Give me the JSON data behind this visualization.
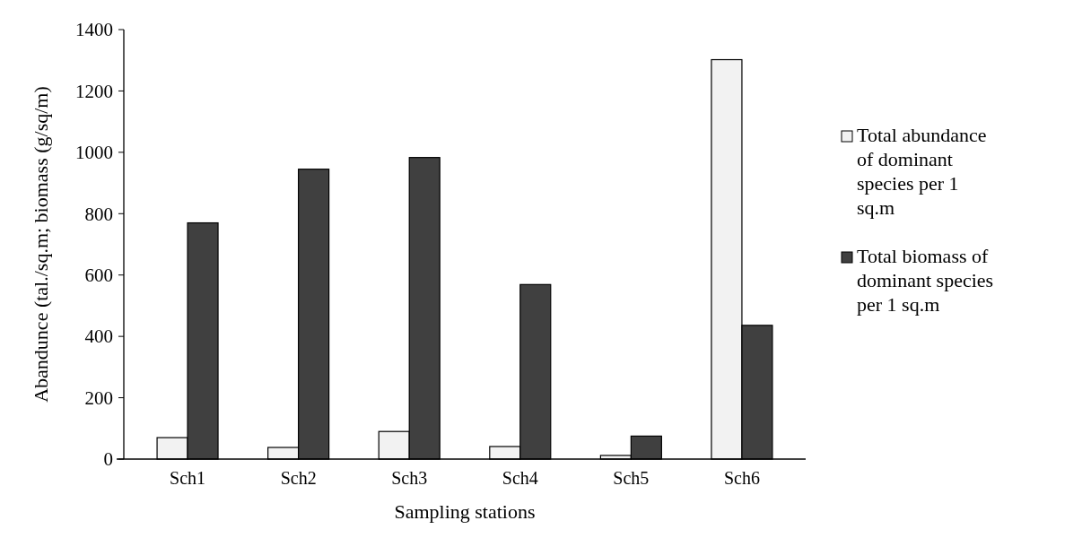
{
  "chart_data": {
    "type": "bar",
    "xlabel": "Sampling stations",
    "ylabel": "Abandunce (tal./sq.m; biomass (g/sq/m)",
    "categories": [
      "Sch1",
      "Sch2",
      "Sch3",
      "Sch4",
      "Sch5",
      "Sch6"
    ],
    "series": [
      {
        "name": "Total abundance of dominant species per 1 sq.m",
        "color": "#f2f2f2",
        "values": [
          70,
          38,
          90,
          41,
          12,
          1302
        ]
      },
      {
        "name": "Total biomass of dominant species per 1 sq.m",
        "color": "#404040",
        "values": [
          770,
          945,
          983,
          569,
          75,
          436
        ]
      }
    ],
    "ylim": [
      0,
      1400
    ],
    "yticks": [
      0,
      200,
      400,
      600,
      800,
      1000,
      1200,
      1400
    ],
    "legend": "right",
    "grid": false
  }
}
